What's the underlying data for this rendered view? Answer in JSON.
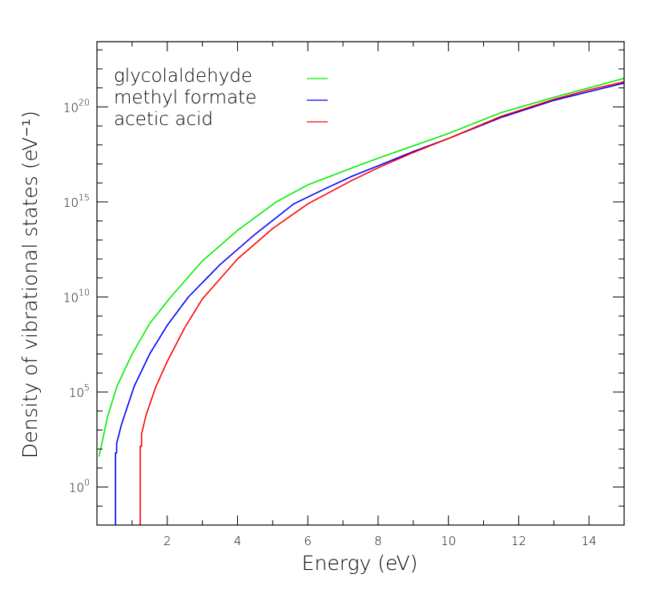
{
  "chart_data": {
    "type": "line",
    "xlabel": "Energy (eV)",
    "ylabel": "Density of vibrational states (eV⁻¹)",
    "xlim": [
      0,
      15
    ],
    "ylim": [
      0.01,
      2.7e+23
    ],
    "yscale": "log",
    "grid": false,
    "legend_position": "top-left",
    "x_ticks": [
      2,
      4,
      6,
      8,
      10,
      12,
      14
    ],
    "x_tick_labels": [
      "2",
      "4",
      "6",
      "8",
      "10",
      "12",
      "14"
    ],
    "y_ticks": [
      1,
      100000.0,
      10000000000.0,
      1000000000000000.0,
      1e+20
    ],
    "y_tick_labels": [
      {
        "base": "10",
        "exp": "0"
      },
      {
        "base": "10",
        "exp": "5"
      },
      {
        "base": "10",
        "exp": "10"
      },
      {
        "base": "10",
        "exp": "15"
      },
      {
        "base": "10",
        "exp": "20"
      }
    ],
    "series": [
      {
        "name": "glycolaldehyde",
        "color": "#00ee00",
        "x": [
          0.06,
          0.3,
          0.57,
          1,
          1.5,
          2.1,
          3,
          4,
          5.1,
          6,
          7.27,
          8,
          9,
          10,
          11.5,
          13,
          14,
          15
        ],
        "y": [
          40.0,
          5000.0,
          200000.0,
          10000000.0,
          400000000.0,
          10000000000.0,
          790000000000.0,
          32000000000000.0,
          1000000000000000.0,
          7900000000000000.0,
          6.3e+16,
          2e+17,
          8.9e+17,
          4e+18,
          5e+19,
          3.2e+20,
          1e+21,
          3.2e+21
        ]
      },
      {
        "name": "methyl formate",
        "color": "#0000ff",
        "x": [
          0.53,
          0.53,
          0.56,
          0.56,
          0.7,
          1.06,
          1.5,
          2,
          2.6,
          3.5,
          4.5,
          5.6,
          6.5,
          7.27,
          8,
          9,
          10,
          11.5,
          13,
          14,
          15
        ],
        "y": [
          0.01,
          63.0,
          63.0,
          200.0,
          2000.0,
          200000.0,
          10000000.0,
          320000000.0,
          10000000000.0,
          500000000000.0,
          20000000000000.0,
          790000000000000.0,
          5000000000000000.0,
          2.3e+16,
          7.9e+16,
          4.5e+17,
          2.2e+18,
          2.8e+19,
          2.2e+20,
          6.3e+20,
          1.8e+21
        ]
      },
      {
        "name": "acetic acid",
        "color": "#ff0000",
        "x": [
          1.23,
          1.23,
          1.27,
          1.27,
          1.4,
          1.68,
          2,
          2.5,
          3,
          4,
          5,
          6,
          7.27,
          8,
          9,
          10,
          11.5,
          13,
          14,
          15
        ],
        "y": [
          0.01,
          140.0,
          140.0,
          630.0,
          6300.0,
          200000.0,
          4000000.0,
          250000000.0,
          7900000000.0,
          1000000000000.0,
          40000000000000.0,
          790000000000000.0,
          1.4e+16,
          6.3e+16,
          4e+17,
          2.2e+18,
          3.2e+19,
          2.5e+20,
          7.9e+20,
          2.1e+21
        ]
      }
    ]
  }
}
